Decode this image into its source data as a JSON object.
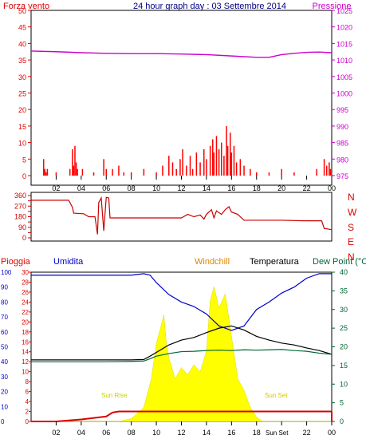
{
  "header": {
    "left_label": "Forza vento",
    "title": "24 hour graph day : 03 Settembre 2014",
    "right_label": "Pressione"
  },
  "direction_letters": [
    "N",
    "W",
    "S",
    "E",
    "N"
  ],
  "lower_header": {
    "rain": "Pioggia",
    "humidity": "Umidita",
    "windchill": "Windchill",
    "temperature": "Temperatura",
    "dewpoint": "Dew Point (°C"
  },
  "annotations": {
    "sunrise": "Sun Rise",
    "sunset": "Sun Set",
    "sunset_time": "Sun Set"
  },
  "colors": {
    "wind": "#ff0000",
    "pressure": "#cc00cc",
    "direction": "#cc0000",
    "humidity": "#0000cc",
    "temperature": "#000000",
    "dewpoint": "#006633",
    "solar": "#ffff00",
    "rain": "#dd0000",
    "title": "#000080"
  },
  "chart_data": [
    {
      "type": "bar",
      "name": "wind-pressure",
      "x_tick_labels": [
        "02",
        "04",
        "06",
        "08",
        "10",
        "12",
        "14",
        "16",
        "18",
        "20",
        "22",
        "00"
      ],
      "y_left_ticks": [
        0,
        5,
        10,
        15,
        20,
        25,
        30,
        35,
        40,
        45,
        50
      ],
      "y_right_ticks": [
        975,
        980,
        985,
        990,
        995,
        1000,
        1005,
        1010,
        1015,
        1020,
        1025
      ],
      "ylim_left": [
        0,
        50
      ],
      "ylim_right": [
        975,
        1025
      ],
      "wind_speed": [
        [
          1.0,
          5
        ],
        [
          1.1,
          2
        ],
        [
          1.2,
          1
        ],
        [
          1.3,
          2
        ],
        [
          2.0,
          1
        ],
        [
          3.1,
          2
        ],
        [
          3.3,
          8
        ],
        [
          3.4,
          3
        ],
        [
          3.5,
          9
        ],
        [
          3.6,
          4
        ],
        [
          3.7,
          2
        ],
        [
          4.1,
          2
        ],
        [
          5.0,
          1
        ],
        [
          5.8,
          5
        ],
        [
          6.0,
          2
        ],
        [
          6.5,
          2
        ],
        [
          7.0,
          3
        ],
        [
          7.4,
          1
        ],
        [
          8.0,
          1
        ],
        [
          9.0,
          2
        ],
        [
          10.0,
          1
        ],
        [
          10.5,
          3
        ],
        [
          11.0,
          6
        ],
        [
          11.3,
          4
        ],
        [
          11.6,
          2
        ],
        [
          11.9,
          5
        ],
        [
          12.1,
          8
        ],
        [
          12.4,
          3
        ],
        [
          12.7,
          6
        ],
        [
          12.9,
          2
        ],
        [
          13.2,
          7
        ],
        [
          13.5,
          4
        ],
        [
          13.8,
          8
        ],
        [
          14.0,
          5
        ],
        [
          14.3,
          9
        ],
        [
          14.5,
          11
        ],
        [
          14.6,
          7
        ],
        [
          14.8,
          12
        ],
        [
          15.0,
          8
        ],
        [
          15.2,
          10
        ],
        [
          15.4,
          6
        ],
        [
          15.6,
          15
        ],
        [
          15.7,
          9
        ],
        [
          15.9,
          13
        ],
        [
          16.0,
          7
        ],
        [
          16.2,
          9
        ],
        [
          16.4,
          4
        ],
        [
          16.7,
          5
        ],
        [
          17.0,
          3
        ],
        [
          17.5,
          2
        ],
        [
          18.0,
          1
        ],
        [
          19.0,
          1
        ],
        [
          20.0,
          2
        ],
        [
          21.0,
          1
        ],
        [
          22.8,
          2
        ],
        [
          23.4,
          5
        ],
        [
          23.6,
          3
        ],
        [
          23.8,
          4
        ],
        [
          23.9,
          2
        ]
      ],
      "pressure": [
        [
          0,
          1012.7
        ],
        [
          2,
          1012.5
        ],
        [
          4,
          1012.2
        ],
        [
          6,
          1012.0
        ],
        [
          8,
          1011.9
        ],
        [
          10,
          1011.9
        ],
        [
          12,
          1011.8
        ],
        [
          14,
          1011.6
        ],
        [
          16,
          1011.2
        ],
        [
          18,
          1010.8
        ],
        [
          19,
          1010.8
        ],
        [
          20,
          1011.6
        ],
        [
          21,
          1012.0
        ],
        [
          22,
          1012.3
        ],
        [
          23,
          1012.4
        ],
        [
          24,
          1012.2
        ]
      ]
    },
    {
      "type": "line",
      "name": "wind-direction",
      "y_ticks": [
        0,
        45,
        90,
        135,
        180,
        225,
        270,
        315,
        360
      ],
      "y_tick_labels": [
        "0",
        "90",
        "180",
        "270",
        "360"
      ],
      "ylim": [
        0,
        360
      ],
      "direction": [
        [
          0,
          320
        ],
        [
          2,
          320
        ],
        [
          3,
          320
        ],
        [
          3.3,
          260
        ],
        [
          3.4,
          210
        ],
        [
          4.2,
          205
        ],
        [
          4.6,
          180
        ],
        [
          5.1,
          180
        ],
        [
          5.3,
          30
        ],
        [
          5.4,
          300
        ],
        [
          5.6,
          340
        ],
        [
          5.8,
          60
        ],
        [
          6.0,
          345
        ],
        [
          6.2,
          340
        ],
        [
          6.3,
          170
        ],
        [
          6.6,
          170
        ],
        [
          8.0,
          170
        ],
        [
          10,
          170
        ],
        [
          12,
          170
        ],
        [
          12.5,
          200
        ],
        [
          13.0,
          180
        ],
        [
          13.5,
          195
        ],
        [
          13.8,
          160
        ],
        [
          14.0,
          200
        ],
        [
          14.4,
          240
        ],
        [
          14.6,
          170
        ],
        [
          14.8,
          230
        ],
        [
          15.2,
          200
        ],
        [
          15.5,
          240
        ],
        [
          15.8,
          265
        ],
        [
          16.0,
          220
        ],
        [
          16.5,
          200
        ],
        [
          17.0,
          150
        ],
        [
          18,
          150
        ],
        [
          20,
          150
        ],
        [
          22,
          145
        ],
        [
          23.2,
          145
        ],
        [
          23.4,
          80
        ],
        [
          24,
          70
        ]
      ]
    },
    {
      "type": "line",
      "name": "rain-humidity-temperature",
      "y_rain_ticks": [
        0,
        2,
        4,
        6,
        8,
        10,
        12,
        14,
        16,
        18,
        20,
        22,
        24,
        26,
        28,
        30
      ],
      "y_humidity_ticks": [
        0,
        10,
        20,
        30,
        40,
        50,
        60,
        70,
        80,
        90,
        100
      ],
      "y_temp_ticks": [
        0,
        5,
        10,
        15,
        20,
        25,
        30,
        35,
        40
      ],
      "humidity": [
        [
          0,
          98
        ],
        [
          3,
          98
        ],
        [
          6,
          98
        ],
        [
          8,
          98
        ],
        [
          9,
          99
        ],
        [
          9.5,
          98
        ],
        [
          10,
          93
        ],
        [
          11,
          85
        ],
        [
          12,
          80
        ],
        [
          13,
          77
        ],
        [
          14,
          72
        ],
        [
          15,
          64
        ],
        [
          16,
          61
        ],
        [
          17,
          64
        ],
        [
          18,
          75
        ],
        [
          19,
          80
        ],
        [
          20,
          86
        ],
        [
          21,
          90
        ],
        [
          22,
          96
        ],
        [
          23,
          99
        ],
        [
          24,
          99
        ]
      ],
      "temperature": [
        [
          0,
          16.5
        ],
        [
          3,
          16.5
        ],
        [
          6,
          16.5
        ],
        [
          8,
          16.5
        ],
        [
          9,
          16.6
        ],
        [
          9.5,
          17.5
        ],
        [
          10,
          18.5
        ],
        [
          11,
          20.5
        ],
        [
          12,
          21.8
        ],
        [
          13,
          22.5
        ],
        [
          14,
          23.8
        ],
        [
          15,
          25
        ],
        [
          16,
          25.6
        ],
        [
          17,
          24.5
        ],
        [
          18,
          22.8
        ],
        [
          19,
          21.8
        ],
        [
          20,
          21
        ],
        [
          21,
          20.5
        ],
        [
          22,
          19.7
        ],
        [
          23,
          19
        ],
        [
          24,
          18
        ]
      ],
      "dewpoint": [
        [
          0,
          16
        ],
        [
          3,
          16
        ],
        [
          6,
          16
        ],
        [
          8,
          16.1
        ],
        [
          9,
          16.2
        ],
        [
          9.5,
          16.8
        ],
        [
          10,
          17.5
        ],
        [
          11,
          18.2
        ],
        [
          12,
          18.7
        ],
        [
          13,
          18.8
        ],
        [
          14,
          19
        ],
        [
          15,
          19.1
        ],
        [
          16,
          19
        ],
        [
          17,
          19.2
        ],
        [
          18,
          19.1
        ],
        [
          19,
          19.2
        ],
        [
          20,
          19.3
        ],
        [
          21,
          19
        ],
        [
          22,
          18.8
        ],
        [
          23,
          18.3
        ],
        [
          24,
          18
        ]
      ],
      "solar_rel": [
        [
          0,
          0
        ],
        [
          7,
          0
        ],
        [
          8,
          0.02
        ],
        [
          9,
          0.1
        ],
        [
          9.6,
          0.3
        ],
        [
          10,
          0.55
        ],
        [
          10.3,
          0.65
        ],
        [
          10.6,
          0.75
        ],
        [
          10.8,
          0.55
        ],
        [
          11,
          0.45
        ],
        [
          11.5,
          0.3
        ],
        [
          12,
          0.38
        ],
        [
          12.5,
          0.33
        ],
        [
          13,
          0.4
        ],
        [
          13.5,
          0.35
        ],
        [
          14,
          0.5
        ],
        [
          14.3,
          0.85
        ],
        [
          14.6,
          0.95
        ],
        [
          15,
          0.8
        ],
        [
          15.5,
          0.9
        ],
        [
          16,
          0.6
        ],
        [
          16.5,
          0.3
        ],
        [
          17,
          0.22
        ],
        [
          17.5,
          0.1
        ],
        [
          18,
          0.03
        ],
        [
          18.5,
          0
        ],
        [
          24,
          0
        ]
      ],
      "rain": [
        [
          0,
          0
        ],
        [
          2,
          0
        ],
        [
          3,
          0.2
        ],
        [
          4,
          0.4
        ],
        [
          5,
          0.7
        ],
        [
          6,
          1
        ],
        [
          6.5,
          1.8
        ],
        [
          7,
          2
        ],
        [
          24,
          2
        ]
      ]
    }
  ]
}
